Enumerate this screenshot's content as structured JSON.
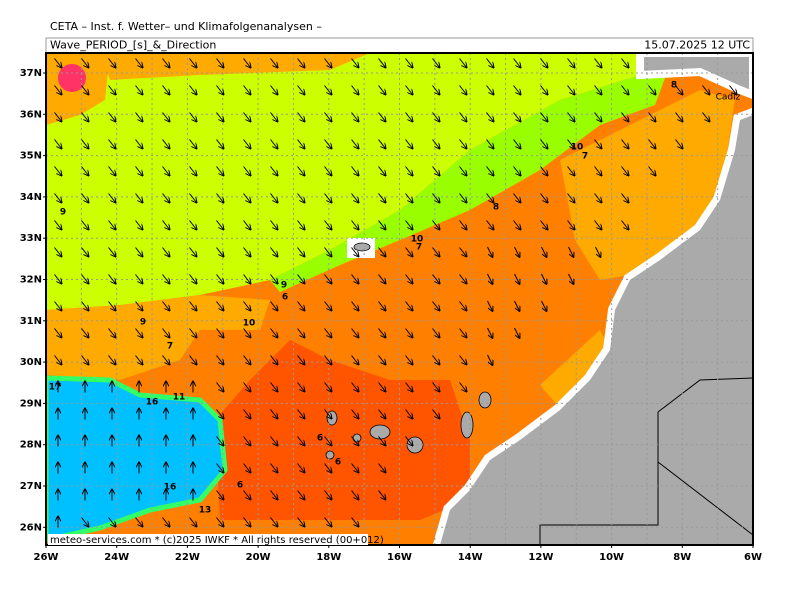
{
  "header": {
    "title": "CETA – Inst. f. Wetter– und Klimafolgenanalysen –",
    "subtitle": "Wave_PERIOD_[s]_&_Direction",
    "timestamp": "15.07.2025 12 UTC"
  },
  "axes": {
    "lat_labels": [
      "37N",
      "36N",
      "35N",
      "34N",
      "33N",
      "32N",
      "31N",
      "30N",
      "29N",
      "28N",
      "27N",
      "26N"
    ],
    "lon_labels": [
      "26W",
      "24W",
      "22W",
      "20W",
      "18W",
      "16W",
      "14W",
      "12W",
      "10W",
      "8W",
      "6W"
    ]
  },
  "contour_labels": [
    "8",
    "10",
    "7",
    "9",
    "8",
    "10",
    "7",
    "9",
    "6",
    "9",
    "10",
    "7",
    "17",
    "16",
    "11",
    "6",
    "6",
    "16",
    "6",
    "13"
  ],
  "place_labels": [
    "Cadiz"
  ],
  "footer": {
    "credit": "meteo-services.com * (c)2025 IWKF * All rights reserved (00+012)"
  }
}
